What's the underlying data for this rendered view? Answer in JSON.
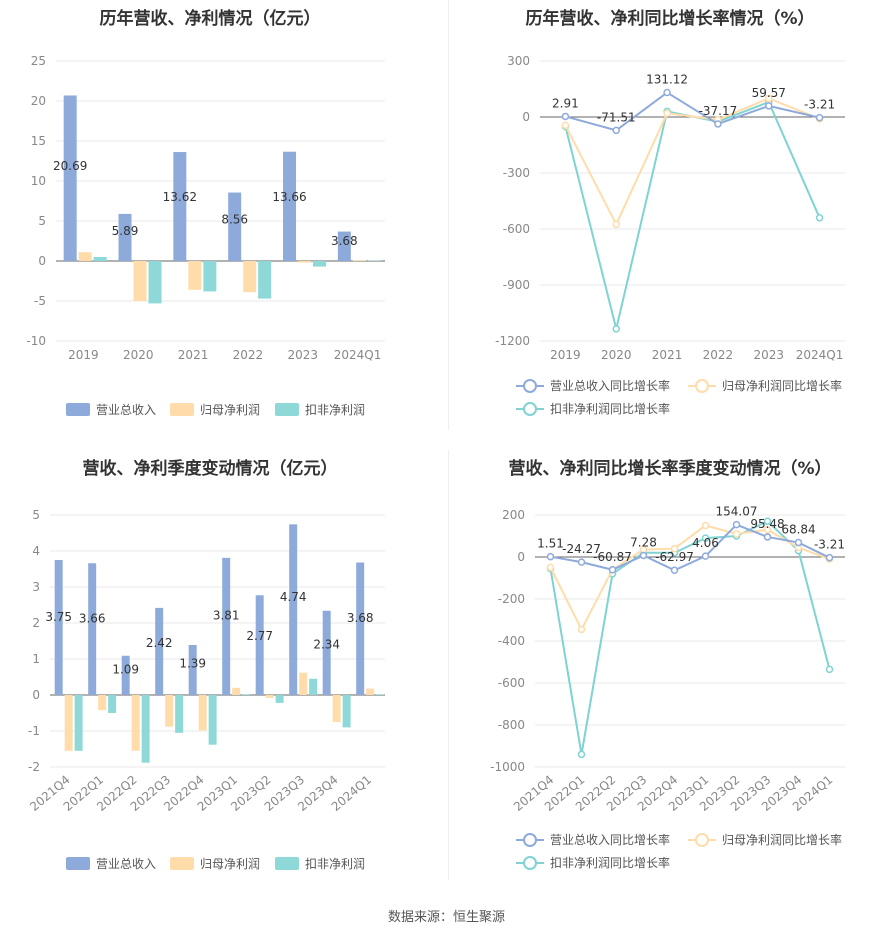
{
  "source": "数据来源：恒生聚源",
  "colors": {
    "revenue": "#8eaadb",
    "net_profit": "#ffdcaa",
    "deducted_profit": "#8fd8d8",
    "revenue_line": "#8eaadb",
    "net_profit_line": "#ffdcaa",
    "deducted_line": "#7fd3d3",
    "grid": "#e8e8e8",
    "axis": "#666666"
  },
  "chart_data": [
    {
      "type": "bar",
      "title": "历年营收、净利情况（亿元）",
      "categories": [
        "2019",
        "2020",
        "2021",
        "2022",
        "2023",
        "2024Q1"
      ],
      "yticks": [
        -10,
        -5,
        0,
        5,
        10,
        15,
        20,
        25
      ],
      "ylim": [
        -10,
        25
      ],
      "series": [
        {
          "name": "营业总收入",
          "values": [
            20.69,
            5.89,
            13.62,
            8.56,
            13.66,
            3.68
          ],
          "labels": [
            "20.69",
            "5.89",
            "13.62",
            "8.56",
            "13.66",
            "3.68"
          ]
        },
        {
          "name": "归母净利润",
          "values": [
            1.1,
            -5.0,
            -3.6,
            -3.9,
            -0.2,
            0.1
          ]
        },
        {
          "name": "扣非净利润",
          "values": [
            0.5,
            -5.3,
            -3.8,
            -4.7,
            -0.7,
            0.05
          ]
        }
      ],
      "legend": "bottom"
    },
    {
      "type": "line",
      "title": "历年营收、净利同比增长率情况（%）",
      "categories": [
        "2019",
        "2020",
        "2021",
        "2022",
        "2023",
        "2024Q1"
      ],
      "yticks": [
        -1200,
        -900,
        -600,
        -300,
        0,
        300
      ],
      "ylim": [
        -1200,
        300
      ],
      "series": [
        {
          "name": "营业总收入同比增长率",
          "values": [
            2.91,
            -71.51,
            131.12,
            -37.17,
            59.57,
            -3.21
          ],
          "labels": [
            "2.91",
            "-71.51",
            "131.12",
            "-37.17",
            "59.57",
            "-3.21"
          ]
        },
        {
          "name": "归母净利润同比增长率",
          "values": [
            -45,
            -575,
            20,
            -15,
            100,
            -10
          ]
        },
        {
          "name": "扣非净利润同比增长率",
          "values": [
            -50,
            -1135,
            30,
            -25,
            80,
            -540
          ]
        }
      ],
      "legend": "bottom"
    },
    {
      "type": "bar",
      "title": "营收、净利季度变动情况（亿元）",
      "categories": [
        "2021Q4",
        "2022Q1",
        "2022Q2",
        "2022Q3",
        "2022Q4",
        "2023Q1",
        "2023Q2",
        "2023Q3",
        "2023Q4",
        "2024Q1"
      ],
      "yticks": [
        -2,
        -1,
        0,
        1,
        2,
        3,
        4,
        5
      ],
      "ylim": [
        -2,
        5
      ],
      "series": [
        {
          "name": "营业总收入",
          "values": [
            3.75,
            3.66,
            1.09,
            2.42,
            1.39,
            3.81,
            2.77,
            4.74,
            2.34,
            3.68
          ],
          "labels": [
            "3.75",
            "3.66",
            "1.09",
            "2.42",
            "1.39",
            "3.81",
            "2.77",
            "4.74",
            "2.34",
            "3.68"
          ]
        },
        {
          "name": "归母净利润",
          "values": [
            -1.55,
            -0.42,
            -1.55,
            -0.88,
            -0.98,
            0.2,
            -0.08,
            0.62,
            -0.75,
            0.18
          ]
        },
        {
          "name": "扣非净利润",
          "values": [
            -1.55,
            -0.5,
            -1.88,
            -1.05,
            -1.38,
            0.02,
            -0.22,
            0.45,
            -0.9,
            0.02
          ]
        }
      ],
      "legend": "bottom"
    },
    {
      "type": "line",
      "title": "营收、净利同比增长率季度变动情况（%）",
      "categories": [
        "2021Q4",
        "2022Q1",
        "2022Q2",
        "2022Q3",
        "2022Q4",
        "2023Q1",
        "2023Q2",
        "2023Q3",
        "2023Q4",
        "2024Q1"
      ],
      "yticks": [
        -1000,
        -800,
        -600,
        -400,
        -200,
        0,
        200
      ],
      "ylim": [
        -1000,
        200
      ],
      "series": [
        {
          "name": "营业总收入同比增长率",
          "values": [
            1.51,
            -24.27,
            -60.87,
            7.28,
            -62.97,
            4.06,
            154.07,
            95.48,
            68.84,
            -3.21
          ],
          "labels": [
            "1.51",
            "-24.27",
            "-60.87",
            "7.28",
            "-62.97",
            "4.06",
            "154.07",
            "95.48",
            "68.84",
            "-3.21"
          ]
        },
        {
          "name": "归母净利润同比增长率",
          "values": [
            -50,
            -345,
            -60,
            35,
            40,
            150,
            110,
            130,
            45,
            -10
          ]
        },
        {
          "name": "扣非净利润同比增长率",
          "values": [
            -55,
            -940,
            -80,
            20,
            20,
            90,
            100,
            170,
            30,
            -535
          ]
        }
      ],
      "legend": "bottom"
    }
  ]
}
